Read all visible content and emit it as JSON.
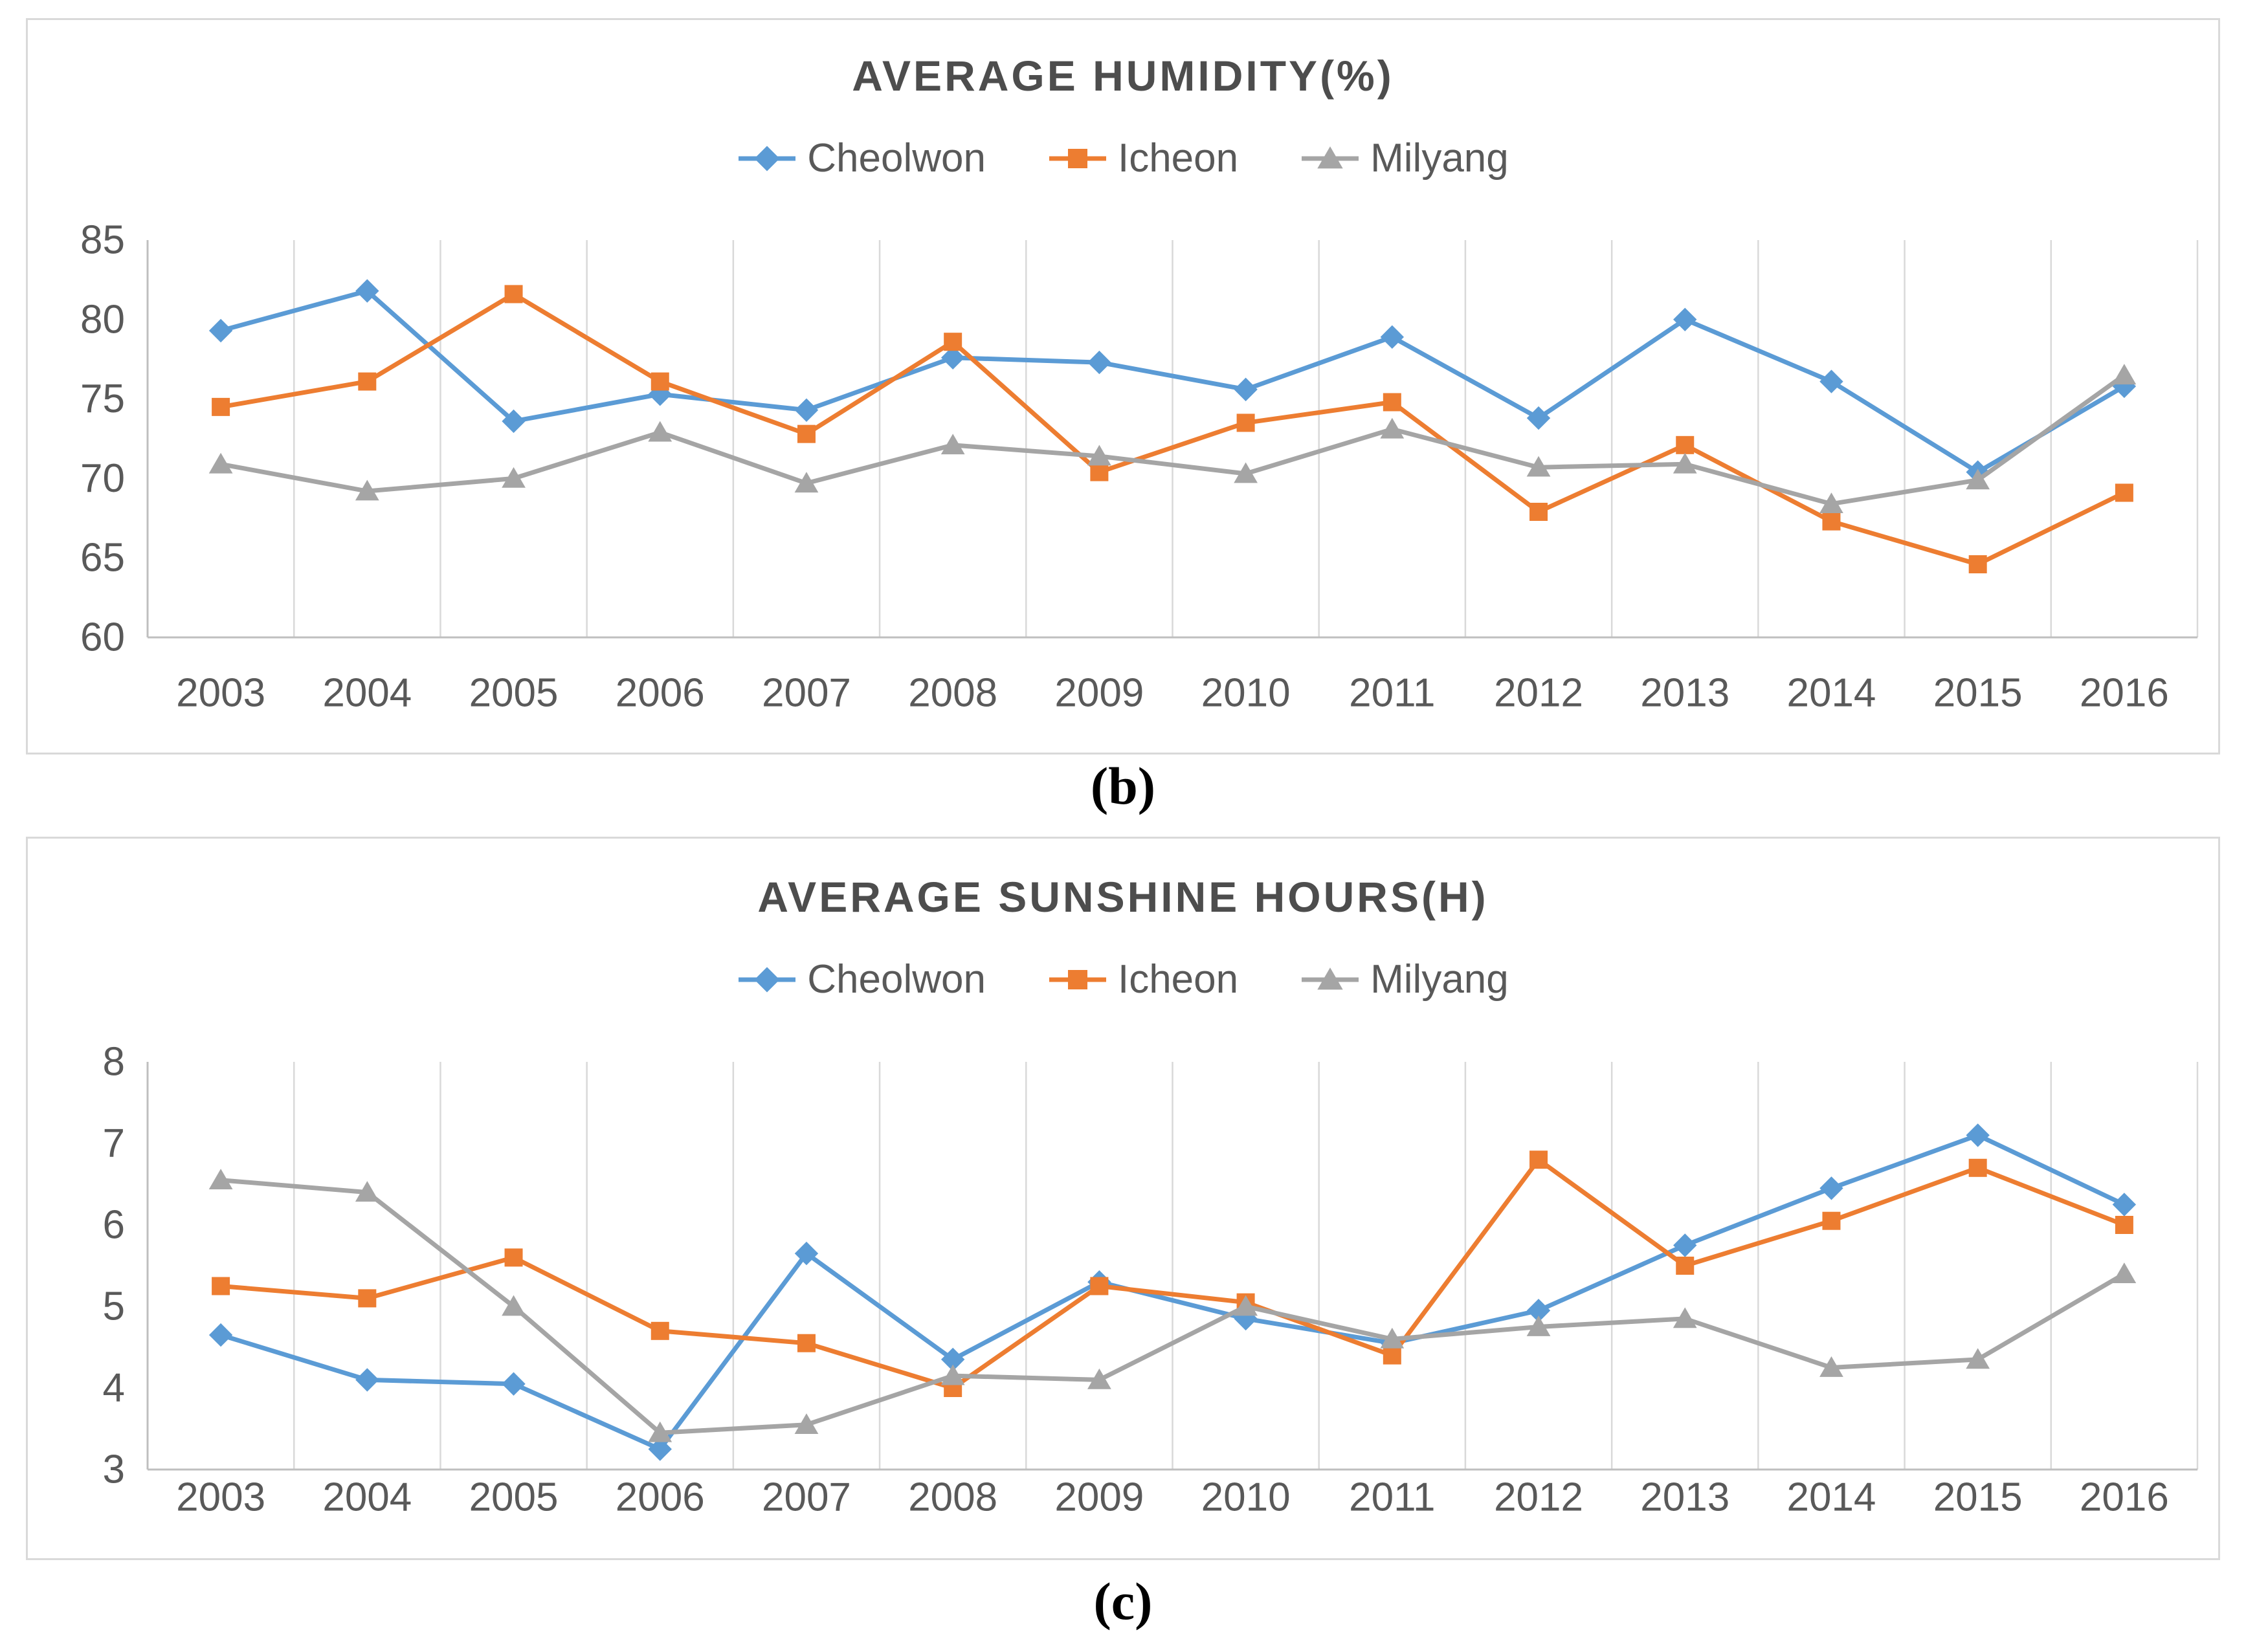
{
  "captions": {
    "top": "(b)",
    "bottom": "(c)"
  },
  "colors": {
    "cheolwon": "#5B9BD5",
    "icheon": "#ED7D31",
    "milyang": "#A5A5A5",
    "title_text": "#4d4d4d",
    "tick_text": "#595959",
    "legend_text": "#595959",
    "gridline": "#d9d9d9",
    "axis_line": "#bfbfbf",
    "panel_border": "#d9d9d9",
    "caption_text": "#000000"
  },
  "chart_data": [
    {
      "id": "humidity",
      "type": "line",
      "title": "AVERAGE HUMIDITY(%)",
      "xlabel": "",
      "ylabel": "",
      "legend_position": "top",
      "grid": "vertical-only",
      "ylim": [
        60,
        85
      ],
      "ystep": 5,
      "yticks": [
        "60",
        "65",
        "70",
        "75",
        "80",
        "85"
      ],
      "categories": [
        "2003",
        "2004",
        "2005",
        "2006",
        "2007",
        "2008",
        "2009",
        "2010",
        "2011",
        "2012",
        "2013",
        "2014",
        "2015",
        "2016"
      ],
      "series": [
        {
          "name": "Cheolwon",
          "marker": "diamond",
          "color_key": "cheolwon",
          "values": [
            79.3,
            81.8,
            73.6,
            75.3,
            74.3,
            77.6,
            77.3,
            75.6,
            78.9,
            73.8,
            80.0,
            76.1,
            70.4,
            75.8
          ]
        },
        {
          "name": "Icheon",
          "marker": "square",
          "color_key": "icheon",
          "values": [
            74.5,
            76.1,
            81.6,
            76.1,
            72.8,
            78.6,
            70.4,
            73.5,
            74.8,
            67.9,
            72.1,
            67.3,
            64.6,
            69.1
          ]
        },
        {
          "name": "Milyang",
          "marker": "triangle",
          "color_key": "milyang",
          "values": [
            70.9,
            69.2,
            70.0,
            72.9,
            69.7,
            72.1,
            71.4,
            70.3,
            73.1,
            70.7,
            70.9,
            68.4,
            69.9,
            76.5
          ]
        }
      ]
    },
    {
      "id": "sunshine",
      "type": "line",
      "title": "AVERAGE SUNSHINE HOURS(H)",
      "xlabel": "",
      "ylabel": "",
      "legend_position": "top",
      "grid": "vertical-only",
      "ylim": [
        3,
        8
      ],
      "ystep": 1,
      "yticks": [
        "3",
        "4",
        "5",
        "6",
        "7",
        "8"
      ],
      "categories": [
        "2003",
        "2004",
        "2005",
        "2006",
        "2007",
        "2008",
        "2009",
        "2010",
        "2011",
        "2012",
        "2013",
        "2014",
        "2015",
        "2016"
      ],
      "series": [
        {
          "name": "Cheolwon",
          "marker": "diamond",
          "color_key": "cheolwon",
          "values": [
            4.65,
            4.1,
            4.05,
            3.25,
            5.65,
            4.35,
            5.3,
            4.85,
            4.55,
            4.95,
            5.75,
            6.45,
            7.1,
            6.25
          ]
        },
        {
          "name": "Icheon",
          "marker": "square",
          "color_key": "icheon",
          "values": [
            5.25,
            5.1,
            5.6,
            4.7,
            4.55,
            4.0,
            5.25,
            5.05,
            4.4,
            6.8,
            5.5,
            6.05,
            6.7,
            6.0
          ]
        },
        {
          "name": "Milyang",
          "marker": "triangle",
          "color_key": "milyang",
          "values": [
            6.55,
            6.4,
            5.0,
            3.45,
            3.55,
            4.15,
            4.1,
            5.0,
            4.6,
            4.75,
            4.85,
            4.25,
            4.35,
            5.4
          ]
        }
      ]
    }
  ]
}
